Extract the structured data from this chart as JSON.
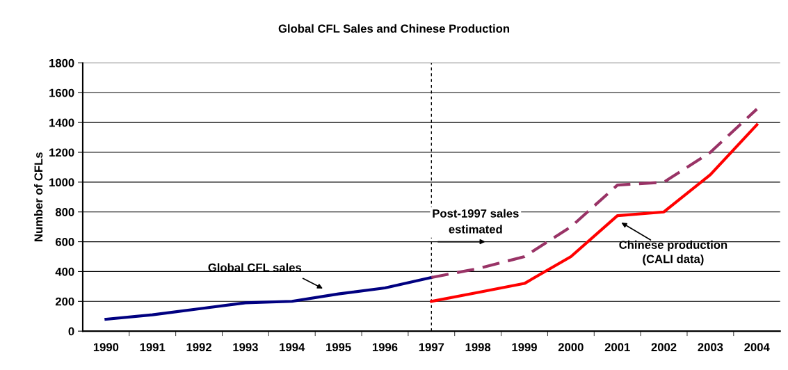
{
  "chart_data": {
    "type": "line",
    "title": "Global CFL Sales and Chinese Production",
    "ylabel": "Number of CFLs",
    "categories": [
      "1990",
      "1991",
      "1992",
      "1993",
      "1994",
      "1995",
      "1996",
      "1997",
      "1998",
      "1999",
      "2000",
      "2001",
      "2002",
      "2003",
      "2004"
    ],
    "series": [
      {
        "name": "Global CFL sales",
        "color": "#000080",
        "values": [
          80,
          110,
          150,
          190,
          200,
          250,
          290,
          360,
          null,
          null,
          null,
          null,
          null,
          null,
          null
        ]
      },
      {
        "name": "Post-1997 sales estimated",
        "color": "#993366",
        "line_style": "dashed",
        "values": [
          null,
          null,
          null,
          null,
          null,
          null,
          null,
          360,
          420,
          500,
          700,
          980,
          1000,
          1200,
          1490
        ]
      },
      {
        "name": "Chinese production (CALI data)",
        "color": "#ff0000",
        "values": [
          null,
          null,
          null,
          null,
          null,
          null,
          null,
          200,
          260,
          320,
          500,
          775,
          800,
          1050,
          1385
        ]
      }
    ],
    "ylim": [
      0,
      1800
    ],
    "yticks": [
      0,
      200,
      400,
      600,
      800,
      1000,
      1200,
      1400,
      1600,
      1800
    ],
    "grid": "y",
    "legend": false,
    "marker": "none",
    "line_style": "solid",
    "ref_lines": [
      {
        "axis": "x",
        "value": "1997",
        "color": "#000000",
        "line_style": "dashed"
      }
    ]
  }
}
